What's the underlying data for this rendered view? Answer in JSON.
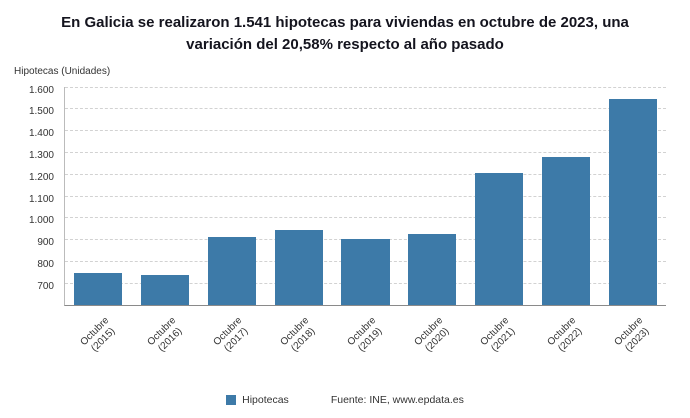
{
  "title": "En Galicia se realizaron 1.541 hipotecas para viviendas en octubre de 2023, una variación del 20,58% respecto al año pasado",
  "y_axis_title": "Hipotecas (Unidades)",
  "legend": {
    "label": "Hipotecas",
    "color": "#3d7aa8"
  },
  "source": "Fuente: INE, www.epdata.es",
  "chart_data": {
    "type": "bar",
    "title": "En Galicia se realizaron 1.541 hipotecas para viviendas en octubre de 2023, una variación del 20,58% respecto al año pasado",
    "ylabel": "Hipotecas (Unidades)",
    "categories": [
      [
        "Octubre",
        "(2015)"
      ],
      [
        "Octubre",
        "(2016)"
      ],
      [
        "Octubre",
        "(2017)"
      ],
      [
        "Octubre",
        "(2018)"
      ],
      [
        "Octubre",
        "(2019)"
      ],
      [
        "Octubre",
        "(2020)"
      ],
      [
        "Octubre",
        "(2021)"
      ],
      [
        "Octubre",
        "(2022)"
      ],
      [
        "Octubre",
        "(2023)"
      ]
    ],
    "values": [
      745,
      735,
      910,
      940,
      900,
      925,
      1205,
      1278,
      1541
    ],
    "ylim": [
      600,
      1600
    ],
    "yticks": [
      700,
      800,
      900,
      1000,
      1100,
      1200,
      1300,
      1400,
      1500,
      1600
    ],
    "ytick_labels": [
      "700",
      "800",
      "900",
      "1.000",
      "1.100",
      "1.200",
      "1.300",
      "1.400",
      "1.500",
      "1.600"
    ],
    "grid": true,
    "bar_color": "#3d7aa8",
    "legend_entries": [
      "Hipotecas"
    ],
    "legend_position": "bottom"
  }
}
